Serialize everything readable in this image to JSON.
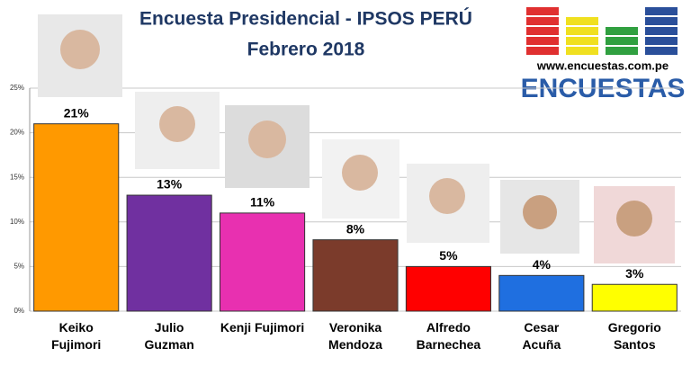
{
  "chart_data": {
    "type": "bar",
    "title": "Encuesta Presidencial - IPSOS PERÚ",
    "subtitle": "Febrero 2018",
    "categories": [
      "Keiko\nFujimori",
      "Julio\nGuzman",
      "Kenji Fujimori",
      "Veronika\nMendoza",
      "Alfredo\nBarnechea",
      "Cesar\nAcuña",
      "Gregorio\nSantos"
    ],
    "values": [
      21,
      13,
      11,
      8,
      5,
      4,
      3
    ],
    "value_labels": [
      "21%",
      "13%",
      "11%",
      "8%",
      "5%",
      "4%",
      "3%"
    ],
    "colors": [
      "#ff9900",
      "#7030a0",
      "#e830b0",
      "#7b3b2b",
      "#ff0000",
      "#1f6fe0",
      "#ffff00"
    ],
    "ylim": [
      0,
      25
    ],
    "yticks": [
      {
        "value": 0,
        "label": "0%"
      },
      {
        "value": 5,
        "label": "5%"
      },
      {
        "value": 10,
        "label": "10%"
      },
      {
        "value": 15,
        "label": "15%"
      },
      {
        "value": 20,
        "label": "20%"
      },
      {
        "value": 25,
        "label": "25%"
      }
    ],
    "grid": true
  },
  "logo": {
    "url": "www.encuestas.com.pe",
    "name": "ENCUESTAS"
  }
}
